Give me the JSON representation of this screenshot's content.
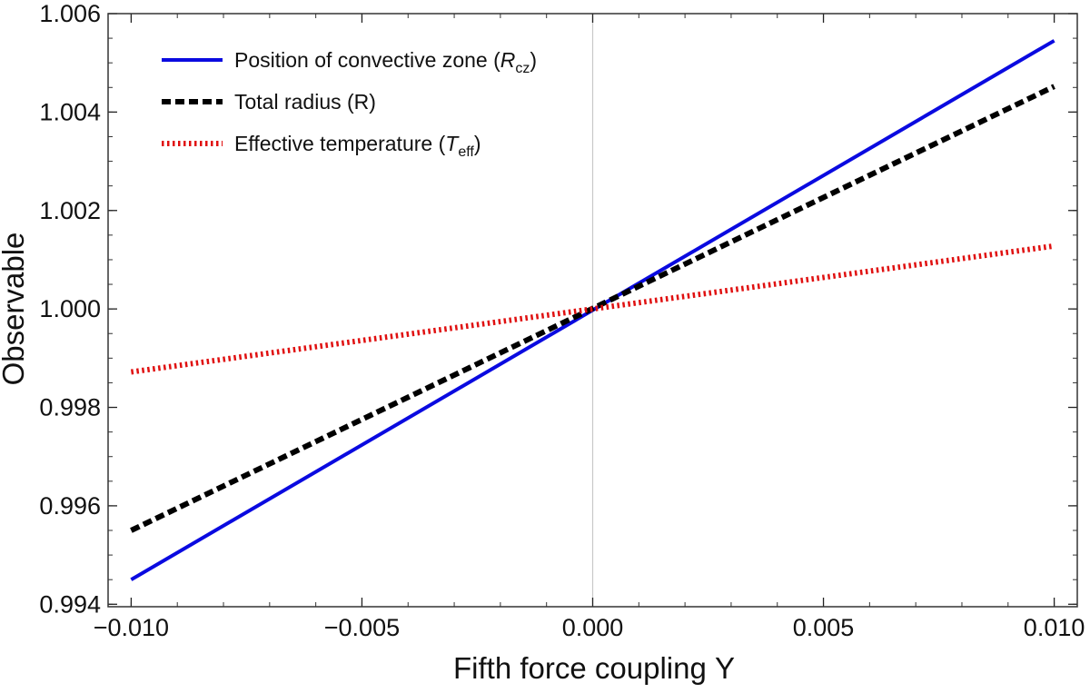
{
  "chart_data": {
    "type": "line",
    "title": "",
    "xlabel": "Fifth force coupling Υ",
    "ylabel": "Observable",
    "xlim": [
      -0.0105,
      0.0105
    ],
    "ylim": [
      0.99395,
      1.006
    ],
    "grid": false,
    "legend_position": "top-left",
    "x_ticks": [
      -0.01,
      -0.005,
      0.0,
      0.005,
      0.01
    ],
    "x_tick_labels": [
      "−0.010",
      "−0.005",
      "0.000",
      "0.005",
      "0.010"
    ],
    "y_ticks": [
      0.994,
      0.996,
      0.998,
      1.0,
      1.002,
      1.004,
      1.006
    ],
    "y_tick_labels": [
      "0.994",
      "0.996",
      "0.998",
      "1.000",
      "1.002",
      "1.004",
      "1.006"
    ],
    "series": [
      {
        "name": "Position of convective zone (Rcz)",
        "legend_label": "Position of convective zone (",
        "legend_symbol": "R",
        "legend_subscript": "cz",
        "legend_suffix": ")",
        "style": "solid",
        "color": "#0a0ae0",
        "x": [
          -0.01,
          0.01
        ],
        "values": [
          0.9945,
          1.00545
        ]
      },
      {
        "name": "Total radius (R)",
        "legend_label": "Total radius (R)",
        "style": "dashed",
        "color": "#000000",
        "x": [
          -0.01,
          0.01
        ],
        "values": [
          0.9955,
          1.00452
        ]
      },
      {
        "name": "Effective temperature (Teff)",
        "legend_label": "Effective temperature (",
        "legend_symbol": "T",
        "legend_subscript": "eff",
        "legend_suffix": ")",
        "style": "dotted",
        "color": "#e01010",
        "x": [
          -0.01,
          0.01
        ],
        "values": [
          0.99872,
          1.00128
        ]
      }
    ]
  }
}
